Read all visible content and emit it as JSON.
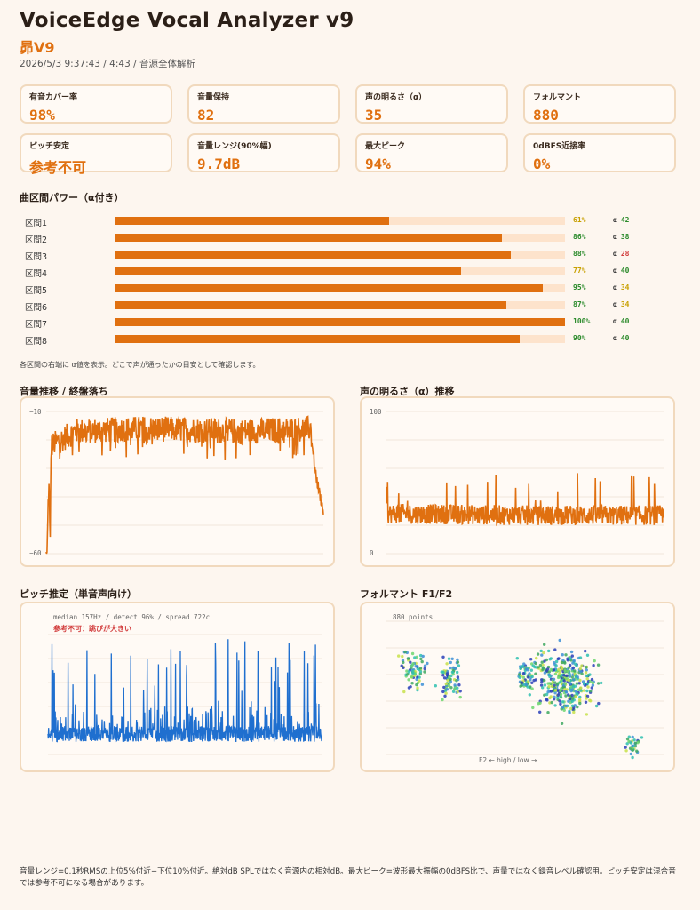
{
  "header": {
    "title": "VoiceEdge Vocal Analyzer v9",
    "subtitle": "昴V9",
    "meta": "2026/5/3 9:37:43 / 4:43 / 音源全体解析"
  },
  "cards": [
    {
      "label": "有音カバー率",
      "value": "98%"
    },
    {
      "label": "音量保持",
      "value": "82"
    },
    {
      "label": "声の明るさ（α）",
      "value": "35"
    },
    {
      "label": "フォルマント",
      "value": "880"
    },
    {
      "label": "ピッチ安定",
      "value": "参考不可"
    },
    {
      "label": "音量レンジ(90%幅)",
      "value": "9.7dB"
    },
    {
      "label": "最大ピーク",
      "value": "94%"
    },
    {
      "label": "0dBFS近接率",
      "value": "0%"
    }
  ],
  "sections": {
    "power_title": "曲区間パワー（α付き）",
    "power_note": "各区間の右端に α値を表示。どこで声が通ったかの目安として確認します。",
    "volume_title": "音量推移 / 終盤落ち",
    "brightness_title": "声の明るさ（α）推移",
    "pitch_title": "ピッチ推定（単音声向け）",
    "formant_title": "フォルマント F1/F2"
  },
  "colors": {
    "accent": "#e07010",
    "pitch_line": "#1f6fcf",
    "good": "#2a8a2a",
    "warn": "#c8a000",
    "bad": "#d23c3c"
  },
  "chart_data": [
    {
      "type": "bar",
      "categories": [
        "区間1",
        "区間2",
        "区間3",
        "区間4",
        "区間5",
        "区間6",
        "区間7",
        "区間8"
      ],
      "values": [
        61,
        86,
        88,
        77,
        95,
        87,
        100,
        90
      ],
      "value_labels": [
        "61%",
        "86%",
        "88%",
        "77%",
        "95%",
        "87%",
        "100%",
        "90%"
      ],
      "alpha_prefix": "α",
      "alpha": [
        42,
        38,
        28,
        40,
        34,
        34,
        40,
        40
      ],
      "ylim": [
        0,
        100
      ]
    },
    {
      "type": "line",
      "ylim": [
        -60,
        -10
      ],
      "ytick_top": "−10",
      "ytick_bottom": "−60",
      "x_range": [
        0,
        283
      ],
      "profile": [
        [
          0,
          -60
        ],
        [
          1,
          -60
        ],
        [
          2,
          -42
        ],
        [
          3,
          -36
        ],
        [
          4,
          -58
        ],
        [
          5,
          -22
        ],
        [
          30,
          -17
        ],
        [
          100,
          -16
        ],
        [
          200,
          -17
        ],
        [
          270,
          -16
        ],
        [
          275,
          -32
        ],
        [
          283,
          -45
        ]
      ]
    },
    {
      "type": "line",
      "ylim": [
        0,
        100
      ],
      "ytick_top": "100",
      "ytick_bottom": "0",
      "x_range": [
        0,
        283
      ],
      "profile": [
        [
          0,
          40
        ],
        [
          1,
          28
        ],
        [
          20,
          28
        ],
        [
          140,
          27
        ],
        [
          283,
          27
        ]
      ]
    },
    {
      "type": "line",
      "annotation": "median 157Hz / detect 96% / spread 722c",
      "warning": "参考不可：跳びが大きい",
      "median_hz": 157,
      "detect_pct": 96,
      "spread_cents": 722
    },
    {
      "type": "scatter",
      "annotation": "880 points",
      "point_count": 880,
      "xlabel": "F2 ← high / low →"
    }
  ]
}
